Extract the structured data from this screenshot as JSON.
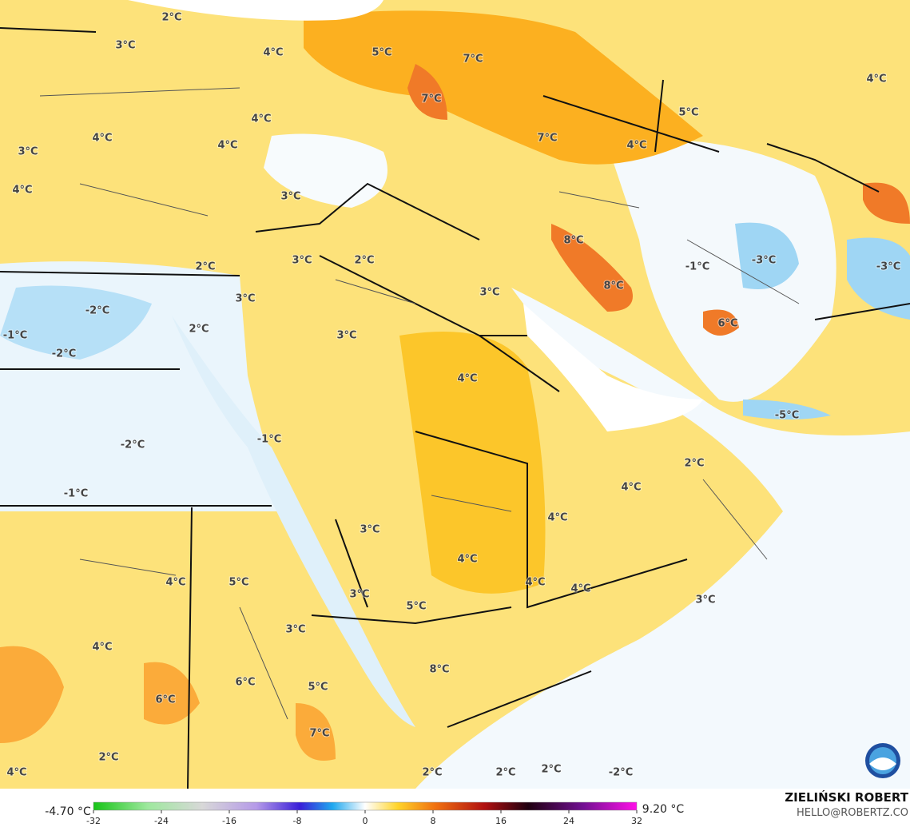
{
  "map": {
    "labels": [
      "2°C",
      "3°C",
      "4°C",
      "5°C",
      "7°C",
      "4°C",
      "7°C",
      "4°C",
      "5°C",
      "4°C",
      "4°C",
      "7°C",
      "4°C",
      "3°C",
      "4°C",
      "3°C",
      "2°C",
      "3°C",
      "8°C",
      "-1°C",
      "-3°C",
      "-3°C",
      "2°C",
      "8°C",
      "3°C",
      "-2°C",
      "3°C",
      "6°C",
      "-1°C",
      "2°C",
      "3°C",
      "-2°C",
      "4°C",
      "-5°C",
      "-1°C",
      "-2°C",
      "2°C",
      "4°C",
      "-1°C",
      "4°C",
      "3°C",
      "4°C",
      "4°C",
      "5°C",
      "4°C",
      "4°C",
      "3°C",
      "5°C",
      "3°C",
      "3°C",
      "4°C",
      "8°C",
      "6°C",
      "5°C",
      "6°C",
      "7°C",
      "2°C",
      "4°C",
      "2°C",
      "2°C",
      "2°C",
      "-2°C"
    ]
  },
  "colorbar": {
    "min_label": "-4.70 °C",
    "max_label": "9.20 °C",
    "range": [
      -32,
      32
    ],
    "ticks": [
      -32,
      -24,
      -16,
      -8,
      0,
      8,
      16,
      24,
      32
    ]
  },
  "credits": {
    "author": "ZIELIŃSKI ROBERT",
    "contact": "HELLO@ROBERTZ.CO"
  }
}
